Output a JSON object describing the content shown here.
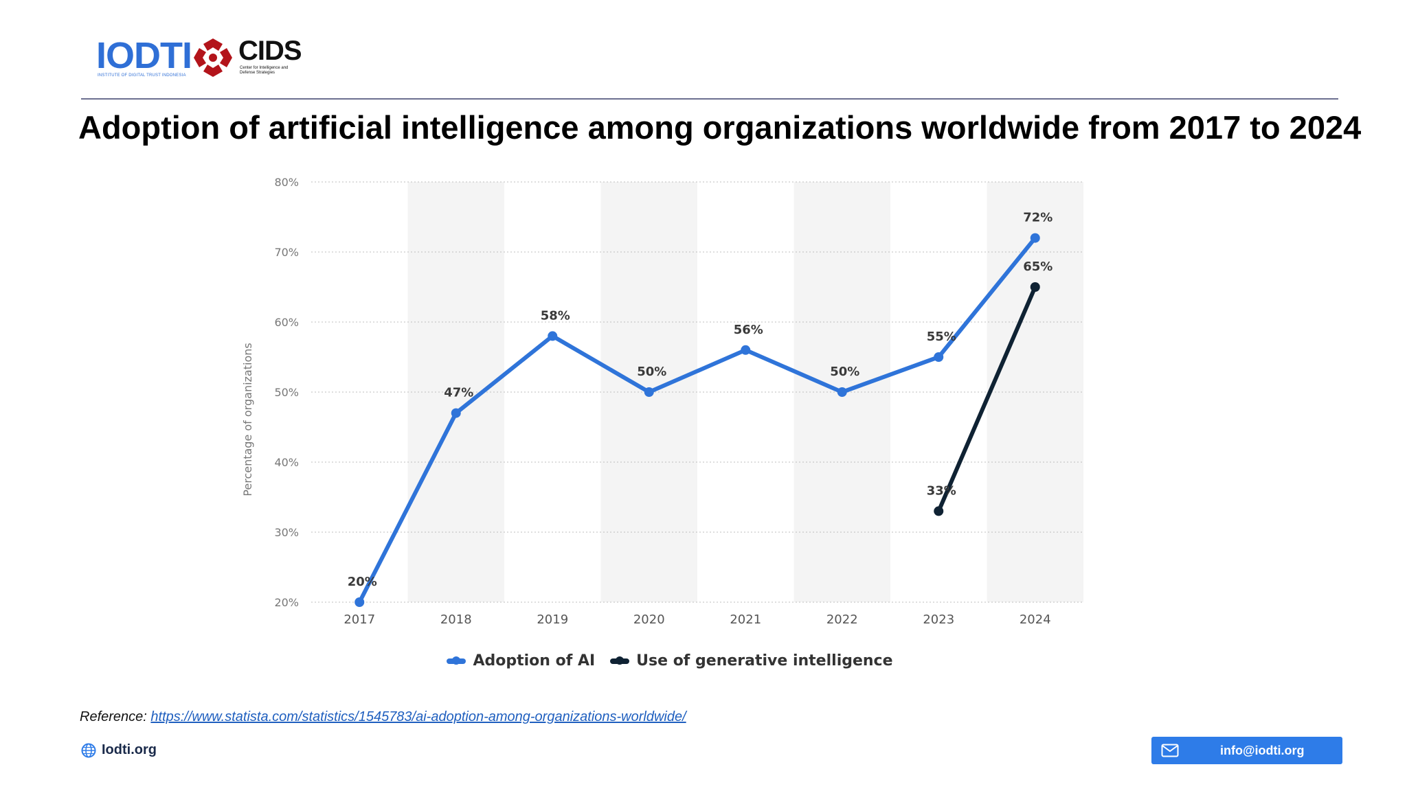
{
  "header": {
    "logo_iodti": {
      "text": "IODTI",
      "subtitle": "INSTITUTE OF DIGITAL TRUST INDONESIA",
      "color": "#2f6fd6"
    },
    "logo_cids": {
      "text": "CIDS",
      "subtitle": "Center for Intelligence and Defense Strategies",
      "emblem_color": "#b3141b"
    }
  },
  "title": "Adoption of artificial intelligence among organizations worldwide from 2017 to 2024",
  "chart_data": {
    "type": "line",
    "title": "",
    "xlabel": "",
    "ylabel": "Percentage of organizations",
    "categories": [
      "2017",
      "2018",
      "2019",
      "2020",
      "2021",
      "2022",
      "2023",
      "2024"
    ],
    "y_ticks": [
      "20%",
      "30%",
      "40%",
      "50%",
      "60%",
      "70%",
      "80%"
    ],
    "ylim": [
      20,
      80
    ],
    "grid": true,
    "alternating_column_shading": true,
    "legend_position": "bottom-center",
    "series": [
      {
        "name": "Adoption of AI",
        "color": "#2f74d9",
        "x": [
          "2017",
          "2018",
          "2019",
          "2020",
          "2021",
          "2022",
          "2023",
          "2024"
        ],
        "values": [
          20,
          47,
          58,
          50,
          56,
          50,
          55,
          72
        ],
        "labels": [
          "20%",
          "47%",
          "58%",
          "50%",
          "56%",
          "50%",
          "55%",
          "72%"
        ]
      },
      {
        "name": "Use of generative intelligence",
        "color": "#0f2233",
        "x": [
          "2023",
          "2024"
        ],
        "values": [
          33,
          65
        ],
        "labels": [
          "33%",
          "65%"
        ]
      }
    ]
  },
  "footer": {
    "reference_prefix": "Reference: ",
    "reference_url": "https://www.statista.com/statistics/1545783/ai-adoption-among-organizations-worldwide/",
    "site": "Iodti.org",
    "site_icon": "globe-icon",
    "email": "info@iodti.org",
    "email_icon": "mail-icon",
    "accent_color": "#2e7ce8"
  }
}
